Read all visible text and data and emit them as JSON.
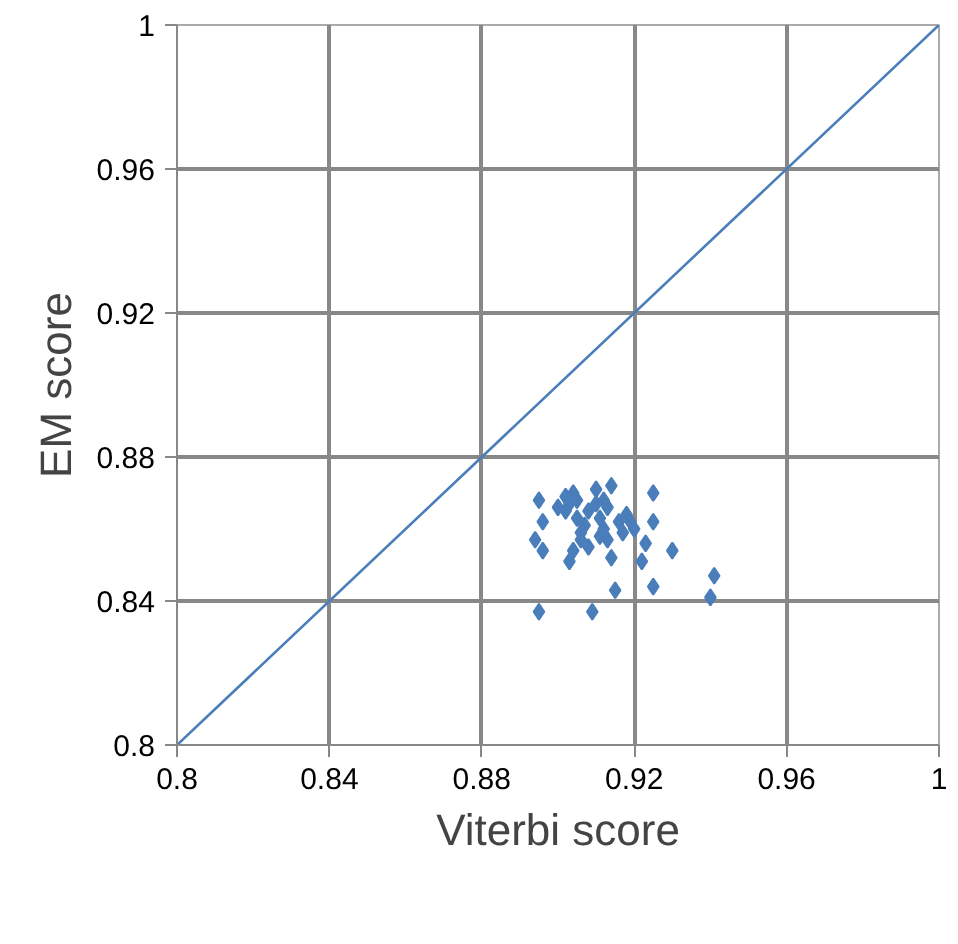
{
  "chart_data": {
    "type": "scatter",
    "xlabel": "Viterbi score",
    "ylabel": "EM score",
    "xlim": [
      0.8,
      1
    ],
    "ylim": [
      0.8,
      1
    ],
    "xticks": [
      0.8,
      0.84,
      0.88,
      0.92,
      0.96,
      1
    ],
    "yticks": [
      0.8,
      0.84,
      0.88,
      0.92,
      0.96,
      1
    ],
    "grid": true,
    "series": [
      {
        "color": "#4a7ebb",
        "marker": "diamond",
        "x": [
          0.895,
          0.896,
          0.894,
          0.896,
          0.895,
          0.902,
          0.903,
          0.904,
          0.902,
          0.905,
          0.903,
          0.904,
          0.906,
          0.907,
          0.905,
          0.908,
          0.909,
          0.91,
          0.91,
          0.911,
          0.912,
          0.913,
          0.914,
          0.914,
          0.915,
          0.913,
          0.916,
          0.917,
          0.918,
          0.919,
          0.92,
          0.909,
          0.925,
          0.925,
          0.923,
          0.922,
          0.925,
          0.93,
          0.941,
          0.94,
          0.906,
          0.908,
          0.911,
          0.912,
          0.9
        ],
        "values": [
          0.868,
          0.862,
          0.857,
          0.854,
          0.837,
          0.869,
          0.867,
          0.87,
          0.865,
          0.868,
          0.851,
          0.854,
          0.857,
          0.861,
          0.863,
          0.865,
          null,
          0.871,
          0.867,
          0.863,
          0.86,
          0.857,
          0.872,
          0.852,
          0.843,
          0.866,
          0.862,
          0.859,
          0.864,
          0.862,
          0.86,
          0.837,
          0.87,
          0.862,
          0.856,
          0.851,
          0.844,
          0.854,
          0.847,
          0.841,
          0.859,
          0.855,
          0.858,
          0.868,
          0.866
        ]
      },
      {
        "type": "line",
        "color": "#4a7ebb",
        "line_style": "solid",
        "x": [
          0.8,
          1
        ],
        "values": [
          0.8,
          1
        ]
      }
    ]
  }
}
